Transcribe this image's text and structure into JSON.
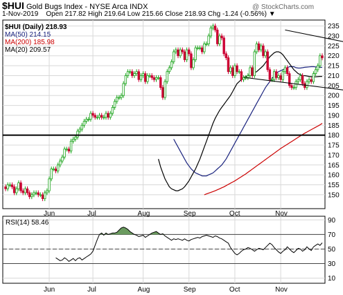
{
  "header": {
    "symbol": "$HUI",
    "name": "Gold Bugs Index - NYSE Arca INDX",
    "watermark": "@ StockCharts.com",
    "date": "1-Nov-2019",
    "quote": "Open 217.82  High 219.64  Low 215.66  Close 218.93  Chg -1.24 (-0.56%) ▼"
  },
  "colors": {
    "up": "#1aa31a",
    "down": "#cc0033",
    "ma50": "#1a237e",
    "ma200": "#cc0000",
    "ma20": "#000000",
    "rsi_fill": "#6b9b5f",
    "grid": "#d8d8d8"
  },
  "legend": [
    {
      "text": "$HUI (Daily) 218.93",
      "color": "#000000"
    },
    {
      "text": "MA(50) 214.15",
      "color": "#1a237e"
    },
    {
      "text": "MA(200) 185.98",
      "color": "#cc0000"
    },
    {
      "text": "MA(20) 209.57",
      "color": "#000000"
    }
  ],
  "rsi_label": "RSI(14) 58.46",
  "chart_data": [
    {
      "type": "candlestick",
      "title": "$HUI (Daily) 218.93",
      "ylim": [
        143,
        238
      ],
      "y_ticks": [
        150,
        155,
        160,
        165,
        170,
        175,
        180,
        185,
        190,
        195,
        200,
        205,
        210,
        215,
        220,
        225,
        230,
        235
      ],
      "x_ticks": [
        "Jun",
        "Jul",
        "Aug",
        "Sep",
        "Oct",
        "Nov"
      ],
      "annotations": [
        {
          "type": "hline",
          "y": 180
        },
        {
          "type": "trendline",
          "points": [
            [
              128,
              233
            ],
            [
              196,
              218
            ]
          ]
        },
        {
          "type": "trendline",
          "points": [
            [
              110,
              209
            ],
            [
              196,
              197
            ]
          ]
        }
      ],
      "series": [
        {
          "name": "$HUI (Daily)",
          "values": [
            153,
            155,
            155,
            154,
            151,
            153,
            156,
            152,
            151,
            153,
            151,
            149,
            150,
            151,
            151,
            150,
            150,
            148,
            151,
            152,
            158,
            163,
            163,
            162,
            165,
            167,
            169,
            173,
            173,
            172,
            177,
            178,
            179,
            182,
            183,
            185,
            187,
            188,
            188,
            191,
            190,
            189,
            189,
            190,
            189,
            189,
            191,
            189,
            191,
            194,
            197,
            199,
            199,
            200,
            206,
            210,
            212,
            212,
            210,
            211,
            212,
            208,
            210,
            211,
            207,
            210,
            210,
            209,
            208,
            209,
            209,
            204,
            199,
            207,
            212,
            214,
            217,
            222,
            223,
            220,
            223,
            222,
            218,
            223,
            221,
            214,
            218,
            224,
            224,
            224,
            222,
            226,
            226,
            230,
            234,
            235,
            233,
            226,
            230,
            229,
            221,
            219,
            212,
            214,
            210,
            215,
            212,
            212,
            208,
            209,
            209,
            210,
            214,
            210,
            222,
            226,
            223,
            225,
            220,
            222,
            213,
            208,
            208,
            212,
            209,
            210,
            208,
            212,
            214,
            211,
            205,
            204,
            204,
            207,
            208,
            210,
            206,
            204,
            207,
            208,
            207,
            211,
            213,
            215,
            220,
            218.93
          ]
        },
        {
          "name": "MA(50)",
          "values": [
            178,
            176,
            174,
            172,
            170,
            168,
            166,
            164.5,
            163,
            162,
            161,
            160.5,
            160,
            159.5,
            159.5,
            159.5,
            160,
            160.5,
            161,
            162,
            163,
            164,
            165,
            166.5,
            168,
            170,
            172,
            174,
            176,
            178,
            180,
            182,
            184,
            186,
            188,
            190,
            192,
            194,
            196,
            198,
            200,
            202,
            204,
            205.5,
            207,
            208.5,
            210,
            211,
            212,
            212.5,
            213,
            213.5,
            214,
            214.5,
            214.5,
            214.5,
            214,
            213.8,
            213.8,
            214,
            214.2,
            214.3,
            214.4,
            214.5,
            214.5,
            214.4,
            214.3,
            214.2,
            214.15
          ]
        },
        {
          "name": "MA(200)",
          "values": [
            150,
            150.4,
            150.8,
            151.2,
            151.6,
            152,
            152.5,
            153,
            153.5,
            154,
            154.6,
            155.2,
            155.8,
            156.4,
            157,
            157.7,
            158.4,
            159.1,
            159.8,
            160.5,
            161.3,
            162.1,
            162.9,
            163.7,
            164.5,
            165.3,
            166.1,
            166.9,
            167.7,
            168.5,
            169.3,
            170.1,
            170.9,
            171.7,
            172.5,
            173.3,
            174,
            174.7,
            175.4,
            176.1,
            176.8,
            177.5,
            178.2,
            178.9,
            179.6,
            180.3,
            181,
            181.6,
            182.2,
            182.8,
            183.4,
            184,
            184.6,
            185.2,
            185.98
          ]
        },
        {
          "name": "MA(20)",
          "values": [
            168,
            164,
            161,
            158,
            156,
            154,
            153,
            152.5,
            152,
            152,
            152.5,
            153,
            154,
            155.5,
            157,
            159,
            161,
            163,
            165.5,
            168,
            171,
            174,
            177,
            180,
            183,
            186,
            188.5,
            190.5,
            192.5,
            194,
            195.5,
            197,
            198.5,
            200,
            202,
            204,
            206,
            207,
            208,
            209,
            209.5,
            210,
            210.5,
            211,
            211.5,
            212,
            213,
            214,
            215,
            216.5,
            218,
            219.5,
            220.5,
            221.5,
            222,
            222,
            221.5,
            220.5,
            219,
            217.5,
            216,
            214.5,
            213,
            212,
            211,
            210.5,
            210,
            210,
            209.8,
            209.6,
            209.5,
            209.4,
            209.4,
            209.5,
            209.6,
            209.57
          ]
        }
      ]
    },
    {
      "type": "line",
      "title": "RSI(14) 58.46",
      "ylim": [
        3,
        95
      ],
      "y_ticks": [
        10,
        30,
        50,
        70,
        90
      ],
      "x_ticks": [
        "Jun",
        "Jul",
        "Aug",
        "Sep",
        "Oct",
        "Nov"
      ],
      "annotations": [
        {
          "type": "hline",
          "y": 70
        },
        {
          "type": "hline",
          "y": 50
        },
        {
          "type": "hline",
          "y": 30
        }
      ],
      "series": [
        {
          "name": "RSI(14)",
          "values": [
            38,
            36,
            34,
            35,
            38,
            36,
            33,
            35,
            37,
            34,
            37,
            38,
            35,
            37,
            39,
            41,
            43,
            47,
            55,
            63,
            70,
            72,
            69,
            72,
            70,
            71,
            72,
            72,
            73,
            76,
            79,
            80,
            79,
            77,
            74,
            72,
            70,
            69,
            67,
            68,
            69,
            66,
            68,
            70,
            72,
            73,
            74,
            72,
            70,
            71,
            68,
            66,
            64,
            62,
            64,
            63,
            64,
            63,
            62,
            64,
            62,
            61,
            63,
            64,
            65,
            66,
            65,
            67,
            68,
            69,
            68,
            67,
            66,
            68,
            67,
            65,
            64,
            62,
            60,
            58,
            52,
            48,
            44,
            42,
            44,
            47,
            49,
            50,
            52,
            51,
            49,
            47,
            49,
            51,
            50,
            49,
            52,
            55,
            58,
            56,
            52,
            49,
            46,
            44,
            47,
            49,
            53,
            50,
            47,
            45,
            48,
            51,
            50,
            47,
            49,
            53,
            50,
            48,
            53,
            55,
            57,
            55,
            58.46
          ]
        }
      ]
    }
  ]
}
